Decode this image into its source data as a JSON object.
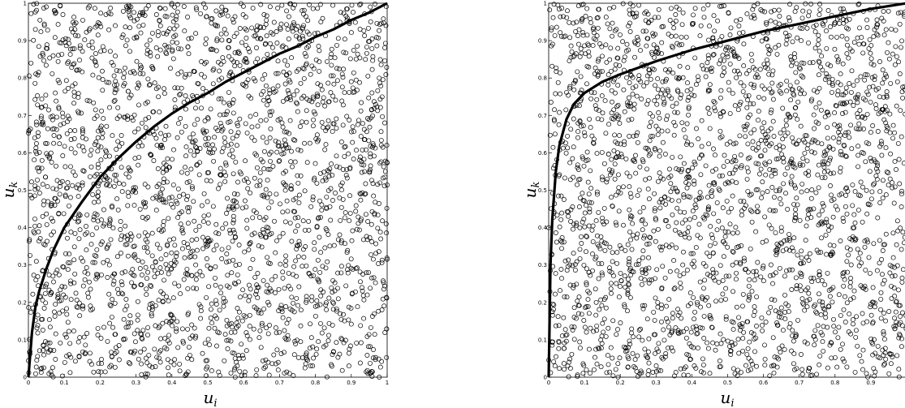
{
  "chart_data": [
    {
      "type": "scatter",
      "panel": "left",
      "xlabel": "u",
      "xlabel_sub": "i",
      "ylabel": "u",
      "ylabel_sub": "k",
      "xlim": [
        0,
        1
      ],
      "ylim": [
        0,
        1
      ],
      "grid": false,
      "xticks": [
        "0",
        "0.1",
        "0.2",
        "0.3",
        "0.4",
        "0.5",
        "0.6",
        "0.7",
        "0.8",
        "0.9",
        "1"
      ],
      "yticks": [
        "0",
        "0.1",
        "0.2",
        "0.3",
        "0.4",
        "0.5",
        "0.6",
        "0.7",
        "0.8",
        "0.9",
        "1"
      ],
      "scatter": {
        "marker": "open-circle",
        "count": 2500,
        "distribution": "uniform on [0,1]x[0,1]",
        "seed": 11
      },
      "curve": {
        "x": [
          0,
          0.01,
          0.02,
          0.03,
          0.05,
          0.07,
          0.1,
          0.15,
          0.2,
          0.25,
          0.3,
          0.35,
          0.4,
          0.45,
          0.5,
          0.55,
          0.6,
          0.65,
          0.7,
          0.75,
          0.8,
          0.85,
          0.9,
          0.95,
          1.0
        ],
        "y": [
          0,
          0.12,
          0.19,
          0.23,
          0.29,
          0.34,
          0.4,
          0.47,
          0.535,
          0.585,
          0.63,
          0.67,
          0.705,
          0.735,
          0.76,
          0.79,
          0.815,
          0.84,
          0.865,
          0.885,
          0.91,
          0.93,
          0.955,
          0.975,
          1.0
        ]
      }
    },
    {
      "type": "scatter",
      "panel": "right",
      "xlabel": "u",
      "xlabel_sub": "i",
      "ylabel": "u",
      "ylabel_sub": "k",
      "xlim": [
        0,
        1
      ],
      "ylim": [
        0,
        1
      ],
      "grid": false,
      "xticks": [
        "0",
        "0.1",
        "0.2",
        "0.3",
        "0.4",
        "0.5",
        "0.6",
        "0.7",
        "0.8",
        "0.9",
        "1"
      ],
      "yticks": [
        "0",
        "0.1",
        "0.2",
        "0.3",
        "0.4",
        "0.5",
        "0.6",
        "0.7",
        "0.8",
        "0.9",
        "1"
      ],
      "scatter": {
        "marker": "open-circle",
        "count": 2500,
        "distribution": "uniform on [0,1]x[0,1]",
        "seed": 29
      },
      "curve": {
        "x": [
          0,
          0.002,
          0.005,
          0.01,
          0.02,
          0.03,
          0.05,
          0.07,
          0.1,
          0.15,
          0.2,
          0.3,
          0.4,
          0.5,
          0.6,
          0.7,
          0.8,
          0.9,
          1.0
        ],
        "y": [
          0,
          0.12,
          0.3,
          0.42,
          0.55,
          0.62,
          0.69,
          0.73,
          0.76,
          0.79,
          0.81,
          0.845,
          0.875,
          0.9,
          0.925,
          0.945,
          0.965,
          0.985,
          1.0
        ]
      }
    }
  ]
}
